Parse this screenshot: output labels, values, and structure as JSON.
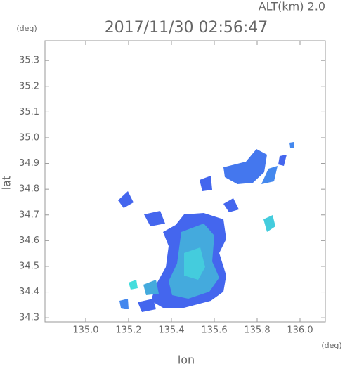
{
  "chart_data": {
    "type": "radar-map",
    "title": "2017/11/30 02:56:47",
    "subtitle": "ALT(km) 2.0",
    "xlabel": "lon",
    "ylabel": "lat",
    "x_unit": "(deg)",
    "y_unit": "(deg)",
    "xlim": [
      134.81,
      136.118
    ],
    "ylim": [
      34.284,
      35.377
    ],
    "xticks": [
      {
        "value": 135.0,
        "label": "135.0"
      },
      135.2,
      135.4,
      135.6,
      135.8,
      {
        "value": 136.0,
        "label": "136.0"
      }
    ],
    "yticks": [
      34.3,
      34.4,
      34.5,
      34.6,
      34.7,
      34.8,
      34.9,
      {
        "value": 35.0,
        "label": "35.0"
      },
      35.1,
      35.2,
      35.3
    ]
  }
}
